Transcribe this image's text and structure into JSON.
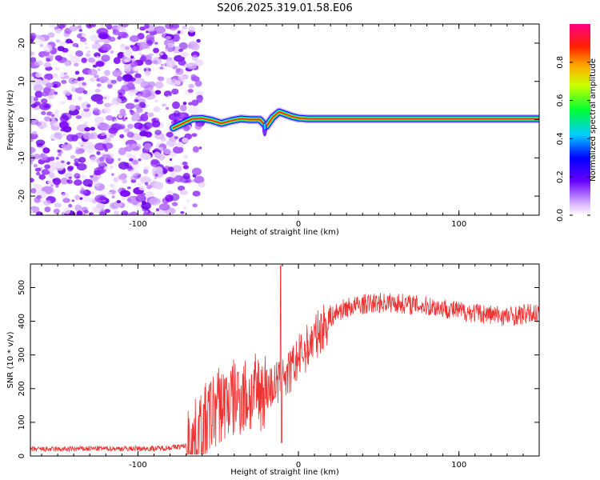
{
  "title": "S206.2025.319.01.58.E06",
  "chart_data": [
    {
      "type": "heatmap",
      "xlabel": "Height of straight line (km)",
      "ylabel": "Frequency (Hz)",
      "xlim": [
        -167,
        150
      ],
      "ylim": [
        -25,
        25
      ],
      "xticks": [
        -100,
        0,
        100
      ],
      "xtick_labels": [
        "-100",
        "0",
        "100"
      ],
      "yticks": [
        -20,
        -10,
        0,
        10,
        20
      ],
      "ytick_labels": [
        "-20",
        "-10",
        "0",
        "10",
        "20"
      ],
      "noise_region_x": [
        -167,
        -70
      ],
      "ridge": {
        "x": [
          -78,
          -72,
          -66,
          -60,
          -54,
          -48,
          -42,
          -36,
          -30,
          -24,
          -20,
          -16,
          -12,
          -8,
          -4,
          0,
          6,
          12,
          20,
          40,
          60,
          80,
          90,
          100,
          120,
          150
        ],
        "y": [
          -2.2,
          -1.0,
          0.2,
          0.3,
          -0.2,
          -1.0,
          -0.3,
          0.2,
          0.0,
          0.0,
          -1.8,
          0.6,
          2.0,
          1.4,
          0.8,
          0.4,
          0.2,
          0.2,
          0.2,
          0.2,
          0.2,
          0.2,
          0.2,
          0.2,
          0.2,
          0.2
        ]
      },
      "colorbar": {
        "label": "Normalized spectral amplitude",
        "range": [
          0,
          1
        ],
        "ticks": [
          0.0,
          0.2,
          0.4,
          0.6,
          0.8
        ],
        "tick_labels": [
          "0.0",
          "0.2",
          "0.4",
          "0.6",
          "0.8"
        ]
      }
    },
    {
      "type": "line",
      "xlabel": "Height of straight line (km)",
      "ylabel": "SNR (10 * v/v)",
      "xlim": [
        -167,
        150
      ],
      "ylim": [
        0,
        570
      ],
      "xticks": [
        -100,
        0,
        100
      ],
      "xtick_labels": [
        "-100",
        "0",
        "100"
      ],
      "yticks": [
        0,
        100,
        200,
        300,
        400,
        500
      ],
      "ytick_labels": [
        "0",
        "100",
        "200",
        "300",
        "400",
        "500"
      ],
      "color": "#ee3333",
      "series": [
        {
          "name": "SNR",
          "x": [
            -167,
            -150,
            -130,
            -110,
            -90,
            -80,
            -70,
            -65,
            -60,
            -55,
            -50,
            -45,
            -40,
            -35,
            -30,
            -25,
            -20,
            -15,
            -12,
            -10,
            -9,
            -8,
            -5,
            0,
            5,
            10,
            15,
            20,
            25,
            30,
            40,
            50,
            60,
            70,
            80,
            90,
            100,
            110,
            120,
            130,
            140,
            150
          ],
          "values": [
            20,
            20,
            22,
            22,
            22,
            25,
            30,
            45,
            80,
            120,
            150,
            160,
            170,
            180,
            175,
            190,
            200,
            210,
            220,
            280,
            250,
            230,
            250,
            290,
            320,
            350,
            380,
            410,
            430,
            440,
            450,
            455,
            455,
            450,
            445,
            440,
            430,
            425,
            420,
            415,
            420,
            425
          ]
        }
      ],
      "spike": {
        "x": -11,
        "value": 565
      }
    }
  ]
}
